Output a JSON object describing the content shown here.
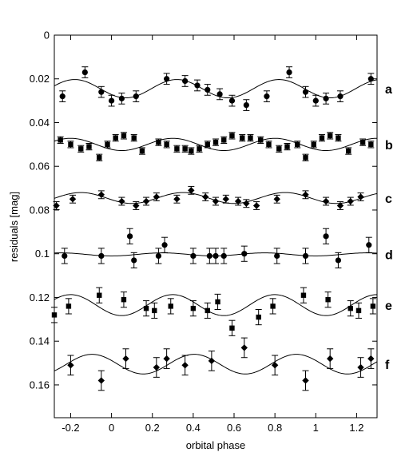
{
  "chart_data": {
    "type": "scatter",
    "xlabel": "orbital phase",
    "ylabel": "residuals  [mag]",
    "xlim": [
      -0.28,
      1.3
    ],
    "ylim": [
      0,
      0.175
    ],
    "y_inverted": true,
    "x_ticks": [
      -0.2,
      0,
      0.2,
      0.4,
      0.6,
      0.8,
      1,
      1.2
    ],
    "x_tick_labels": [
      "-0.2",
      "0",
      "0.2",
      "0.4",
      "0.6",
      "0.8",
      "1",
      "1.2"
    ],
    "y_ticks": [
      0,
      0.02,
      0.04,
      0.06,
      0.08,
      0.1,
      0.12,
      0.14,
      0.16
    ],
    "y_tick_labels": [
      "0",
      "0.02",
      "0.04",
      "0.06",
      "0.08",
      "0.1",
      "0.12",
      "0.14",
      "0.16"
    ],
    "grid": false,
    "series": [
      {
        "name": "a",
        "marker": "circle",
        "errorbar": 0.0025,
        "curve": {
          "offset": 0.0245,
          "amp": 0.0042,
          "freq": 2,
          "phase": -0.43
        },
        "points": [
          [
            -0.24,
            0.028
          ],
          [
            -0.13,
            0.017
          ],
          [
            -0.05,
            0.026
          ],
          [
            0.0,
            0.03
          ],
          [
            0.05,
            0.029
          ],
          [
            0.12,
            0.028
          ],
          [
            0.27,
            0.02
          ],
          [
            0.36,
            0.021
          ],
          [
            0.42,
            0.023
          ],
          [
            0.47,
            0.025
          ],
          [
            0.53,
            0.027
          ],
          [
            0.59,
            0.03
          ],
          [
            0.66,
            0.032
          ],
          [
            0.76,
            0.028
          ],
          [
            0.87,
            0.017
          ],
          [
            0.95,
            0.026
          ],
          [
            1.0,
            0.03
          ],
          [
            1.05,
            0.029
          ],
          [
            1.12,
            0.028
          ],
          [
            1.27,
            0.02
          ]
        ]
      },
      {
        "name": "b",
        "marker": "square",
        "errorbar": 0.0015,
        "curve": {
          "offset": 0.05,
          "amp": 0.0028,
          "freq": 2,
          "phase": -0.45
        },
        "points": [
          [
            -0.25,
            0.048
          ],
          [
            -0.2,
            0.05
          ],
          [
            -0.15,
            0.052
          ],
          [
            -0.11,
            0.051
          ],
          [
            -0.06,
            0.056
          ],
          [
            -0.02,
            0.05
          ],
          [
            0.02,
            0.047
          ],
          [
            0.06,
            0.046
          ],
          [
            0.11,
            0.047
          ],
          [
            0.15,
            0.053
          ],
          [
            0.23,
            0.049
          ],
          [
            0.27,
            0.05
          ],
          [
            0.32,
            0.052
          ],
          [
            0.36,
            0.052
          ],
          [
            0.39,
            0.053
          ],
          [
            0.43,
            0.052
          ],
          [
            0.47,
            0.05
          ],
          [
            0.51,
            0.049
          ],
          [
            0.55,
            0.048
          ],
          [
            0.59,
            0.046
          ],
          [
            0.64,
            0.047
          ],
          [
            0.68,
            0.047
          ],
          [
            0.73,
            0.048
          ],
          [
            0.77,
            0.05
          ],
          [
            0.82,
            0.052
          ],
          [
            0.86,
            0.051
          ],
          [
            0.91,
            0.05
          ],
          [
            0.95,
            0.056
          ],
          [
            0.99,
            0.05
          ],
          [
            1.03,
            0.047
          ],
          [
            1.07,
            0.046
          ],
          [
            1.11,
            0.047
          ],
          [
            1.16,
            0.053
          ],
          [
            1.23,
            0.049
          ],
          [
            1.27,
            0.05
          ]
        ]
      },
      {
        "name": "c",
        "marker": "diamond",
        "errorbar": 0.0018,
        "curve": {
          "offset": 0.0745,
          "amp": 0.0025,
          "freq": 2,
          "phase": -0.4
        },
        "points": [
          [
            -0.27,
            0.078
          ],
          [
            -0.19,
            0.075
          ],
          [
            -0.05,
            0.073
          ],
          [
            0.05,
            0.076
          ],
          [
            0.12,
            0.078
          ],
          [
            0.17,
            0.076
          ],
          [
            0.22,
            0.074
          ],
          [
            0.32,
            0.075
          ],
          [
            0.39,
            0.071
          ],
          [
            0.46,
            0.074
          ],
          [
            0.51,
            0.076
          ],
          [
            0.56,
            0.075
          ],
          [
            0.62,
            0.076
          ],
          [
            0.66,
            0.077
          ],
          [
            0.71,
            0.078
          ],
          [
            0.81,
            0.075
          ],
          [
            0.95,
            0.073
          ],
          [
            1.05,
            0.076
          ],
          [
            1.12,
            0.078
          ],
          [
            1.17,
            0.076
          ],
          [
            1.22,
            0.074
          ]
        ]
      },
      {
        "name": "d",
        "marker": "circle",
        "errorbar": 0.0035,
        "curve": {
          "offset": 0.1003,
          "amp": 0.0007,
          "freq": 2,
          "phase": 0.0
        },
        "points": [
          [
            -0.23,
            0.101
          ],
          [
            -0.05,
            0.101
          ],
          [
            0.09,
            0.092
          ],
          [
            0.11,
            0.103
          ],
          [
            0.26,
            0.096
          ],
          [
            0.23,
            0.101
          ],
          [
            0.4,
            0.101
          ],
          [
            0.48,
            0.101
          ],
          [
            0.51,
            0.101
          ],
          [
            0.55,
            0.101
          ],
          [
            0.65,
            0.1
          ],
          [
            0.81,
            0.101
          ],
          [
            0.95,
            0.101
          ],
          [
            1.05,
            0.092
          ],
          [
            1.11,
            0.103
          ],
          [
            1.26,
            0.096
          ]
        ]
      },
      {
        "name": "e",
        "marker": "square",
        "errorbar": 0.0035,
        "curve": {
          "offset": 0.1235,
          "amp": 0.0048,
          "freq": 2,
          "phase": 0.05
        },
        "points": [
          [
            -0.28,
            0.128
          ],
          [
            -0.21,
            0.124
          ],
          [
            -0.06,
            0.119
          ],
          [
            0.06,
            0.121
          ],
          [
            0.17,
            0.125
          ],
          [
            0.21,
            0.126
          ],
          [
            0.29,
            0.124
          ],
          [
            0.4,
            0.125
          ],
          [
            0.47,
            0.126
          ],
          [
            0.52,
            0.122
          ],
          [
            0.59,
            0.134
          ],
          [
            0.72,
            0.129
          ],
          [
            0.79,
            0.124
          ],
          [
            0.94,
            0.119
          ],
          [
            1.06,
            0.121
          ],
          [
            1.17,
            0.125
          ],
          [
            1.21,
            0.126
          ],
          [
            1.28,
            0.124
          ]
        ]
      },
      {
        "name": "f",
        "marker": "diamond",
        "errorbar": 0.0045,
        "curve": {
          "offset": 0.1505,
          "amp": 0.0045,
          "freq": 2,
          "phase": 0.155
        },
        "points": [
          [
            -0.2,
            0.151
          ],
          [
            -0.05,
            0.158
          ],
          [
            0.07,
            0.148
          ],
          [
            0.22,
            0.152
          ],
          [
            0.27,
            0.148
          ],
          [
            0.36,
            0.151
          ],
          [
            0.49,
            0.149
          ],
          [
            0.65,
            0.143
          ],
          [
            0.8,
            0.151
          ],
          [
            0.95,
            0.158
          ],
          [
            1.07,
            0.148
          ],
          [
            1.22,
            0.152
          ],
          [
            1.27,
            0.148
          ]
        ]
      }
    ]
  }
}
